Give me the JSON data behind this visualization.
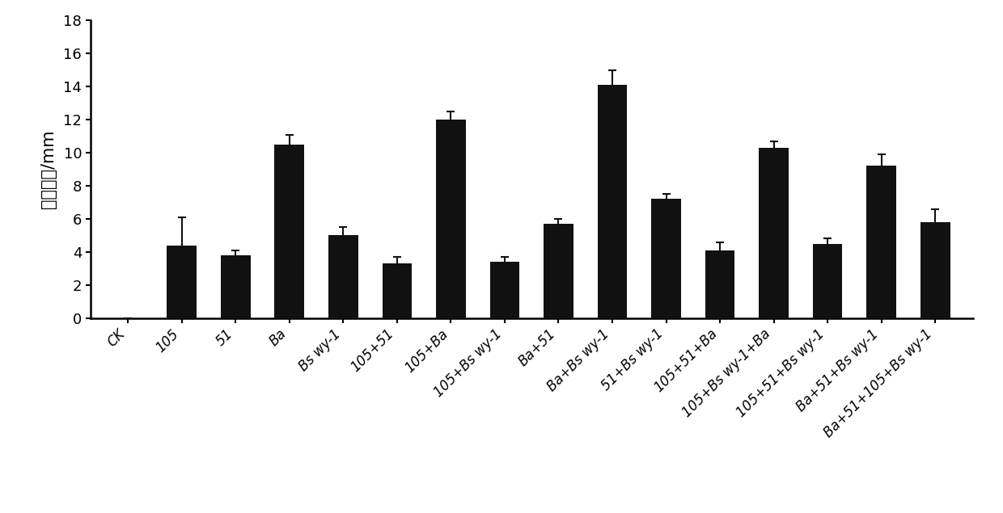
{
  "categories": [
    "CK",
    "105",
    "51",
    "Ba",
    "Bs wy-1",
    "105+51",
    "105+Ba",
    "105+Bs wy-1",
    "Ba+51",
    "Ba+Bs wy-1",
    "51+Bs wy-1",
    "105+51+Ba",
    "105+Bs wy-1+Ba",
    "105+51+Bs wy-1",
    "Ba+51+Bs wy-1",
    "Ba+51+105+Bs wy-1"
  ],
  "values": [
    0.0,
    4.4,
    3.8,
    10.5,
    5.0,
    3.3,
    12.0,
    3.4,
    5.7,
    14.1,
    7.2,
    4.1,
    10.3,
    4.5,
    9.2,
    5.8
  ],
  "errors": [
    0.0,
    1.7,
    0.3,
    0.6,
    0.5,
    0.4,
    0.5,
    0.3,
    0.3,
    0.9,
    0.3,
    0.5,
    0.4,
    0.3,
    0.7,
    0.8
  ],
  "bar_color": "#111111",
  "error_color": "#111111",
  "ylabel": "抑菌距离/mm",
  "ylim": [
    0,
    18
  ],
  "yticks": [
    0,
    2,
    4,
    6,
    8,
    10,
    12,
    14,
    16,
    18
  ],
  "bar_width": 0.55,
  "ylabel_fontsize": 15,
  "tick_fontsize": 12,
  "xlabel_rotation": 45,
  "background_color": "#ffffff",
  "figure_width": 12.4,
  "figure_height": 6.35,
  "dpi": 100
}
